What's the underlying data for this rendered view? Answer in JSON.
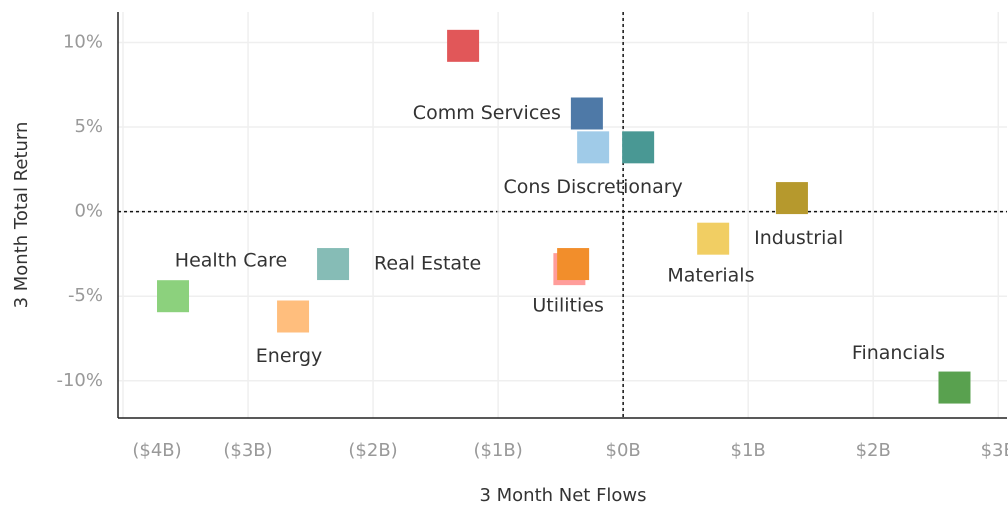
{
  "chart_data": {
    "type": "scatter",
    "x_label": "3 Month Net Flows",
    "y_label": "3 Month Total Return",
    "xlim": [
      -4.04,
      3.07
    ],
    "xticks": [
      {
        "value": -4,
        "label": "($4B)"
      },
      {
        "value": -3,
        "label": "($3B)"
      },
      {
        "value": -2,
        "label": "($2B)"
      },
      {
        "value": -1,
        "label": "($1B)"
      },
      {
        "value": 0,
        "label": "$0B"
      },
      {
        "value": 1,
        "label": "$1B"
      },
      {
        "value": 2,
        "label": "$2B"
      },
      {
        "value": 3,
        "label": "$3B"
      }
    ],
    "ylim": [
      -12.2,
      11.8
    ],
    "yticks": [
      {
        "value": -10,
        "label": "-10%"
      },
      {
        "value": -5,
        "label": "-5%"
      },
      {
        "value": 0,
        "label": "0%"
      },
      {
        "value": 5,
        "label": "5%"
      },
      {
        "value": 10,
        "label": "10%"
      }
    ],
    "grid": true,
    "series": [
      {
        "color": "#e15759",
        "x": [
          -1.28
        ],
        "values": [
          9.8
        ]
      },
      {
        "name": "Comm Services",
        "color": "#4e79a7",
        "x": [
          -0.29
        ],
        "values": [
          5.8
        ]
      },
      {
        "name": "Cons Discretionary",
        "color": "#a0cbe8",
        "x": [
          -0.24
        ],
        "values": [
          3.8
        ]
      },
      {
        "color": "#499894",
        "x": [
          0.12
        ],
        "values": [
          3.8
        ]
      },
      {
        "name": "Materials",
        "color": "#b6992d",
        "x": [
          1.35
        ],
        "values": [
          0.8
        ]
      },
      {
        "name": "Industrial",
        "color": "#f1ce63",
        "x": [
          0.72
        ],
        "values": [
          -1.6
        ]
      },
      {
        "name": "Health Care",
        "color": "#8cd17d",
        "x": [
          -3.6
        ],
        "values": [
          -5.0
        ]
      },
      {
        "name": "Real Estate",
        "color": "#86bcb6",
        "x": [
          -2.32
        ],
        "values": [
          -3.1
        ]
      },
      {
        "name": "Energy",
        "color": "#ffbe7d",
        "x": [
          -2.64
        ],
        "values": [
          -6.2
        ]
      },
      {
        "color": "#ff9d9a",
        "x": [
          -0.43
        ],
        "values": [
          -3.4
        ]
      },
      {
        "name": "Utilities",
        "color": "#f28e2b",
        "x": [
          -0.4
        ],
        "values": [
          -3.1
        ]
      },
      {
        "name": "Financials",
        "color": "#59a14f",
        "x": [
          2.65
        ],
        "values": [
          -10.4
        ]
      }
    ]
  }
}
